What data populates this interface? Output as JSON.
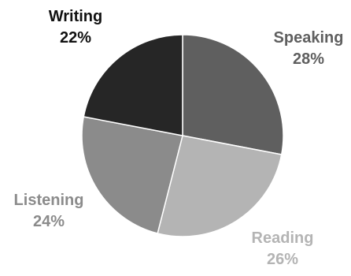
{
  "chart_data": {
    "type": "pie",
    "title": "",
    "start_angle_deg": 0,
    "direction": "clockwise",
    "slices": [
      {
        "label": "Speaking",
        "value": 28,
        "value_text": "28%",
        "color": "#5f5f5f",
        "label_color": "#5f5f5f"
      },
      {
        "label": "Reading",
        "value": 26,
        "value_text": "26%",
        "color": "#b4b4b4",
        "label_color": "#b4b4b4"
      },
      {
        "label": "Listening",
        "value": 24,
        "value_text": "24%",
        "color": "#8b8b8b",
        "label_color": "#8b8b8b"
      },
      {
        "label": "Writing",
        "value": 22,
        "value_text": "22%",
        "color": "#262626",
        "label_color": "#111111"
      }
    ],
    "legend": "none",
    "grid": false
  }
}
